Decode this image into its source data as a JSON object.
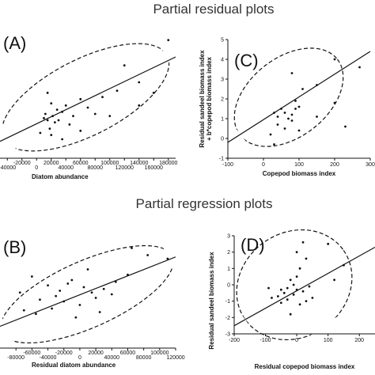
{
  "headings": {
    "top": "Partial residual plots",
    "bottom": "Partial regression plots"
  },
  "chart_data": [
    {
      "panel": "(A)",
      "type": "scatter",
      "xlabel": "Diatom abundance",
      "ylabel": "",
      "xlim": [
        -50000,
        190000
      ],
      "ylim": [
        -1.5,
        4.5
      ],
      "xticks": [
        {
          "v": -40000,
          "label": "-40000"
        },
        {
          "v": -20000,
          "label": "-20000"
        },
        {
          "v": 0,
          "label": "0"
        },
        {
          "v": 20000,
          "label": "20000"
        },
        {
          "v": 40000,
          "label": "40000"
        },
        {
          "v": 60000,
          "label": "60000"
        },
        {
          "v": 80000,
          "label": "80000"
        },
        {
          "v": 100000,
          "label": "100000"
        },
        {
          "v": 120000,
          "label": "120000"
        },
        {
          "v": 140000,
          "label": "140000"
        },
        {
          "v": 160000,
          "label": "160000"
        },
        {
          "v": 180000,
          "label": "180000"
        }
      ],
      "yticks": [],
      "points": [
        {
          "x": 180000,
          "y": 4.1
        },
        {
          "x": 120000,
          "y": 2.9
        },
        {
          "x": 140000,
          "y": 2.1
        },
        {
          "x": 160000,
          "y": 1.6
        },
        {
          "x": 140000,
          "y": 1.0
        },
        {
          "x": 110000,
          "y": 1.7
        },
        {
          "x": 100000,
          "y": 0.5
        },
        {
          "x": 90000,
          "y": 1.4
        },
        {
          "x": 80000,
          "y": 0.6
        },
        {
          "x": 70000,
          "y": 0.9
        },
        {
          "x": 60000,
          "y": 1.3
        },
        {
          "x": 50000,
          "y": 0.5
        },
        {
          "x": 45000,
          "y": 0.1
        },
        {
          "x": 40000,
          "y": 1.0
        },
        {
          "x": 35000,
          "y": 0.7
        },
        {
          "x": 30000,
          "y": 0.3
        },
        {
          "x": 28000,
          "y": 0.8
        },
        {
          "x": 25000,
          "y": 0.2
        },
        {
          "x": 22000,
          "y": 0.5
        },
        {
          "x": 20000,
          "y": 1.1
        },
        {
          "x": 18000,
          "y": -0.1
        },
        {
          "x": 15000,
          "y": 0.3
        },
        {
          "x": 12000,
          "y": 0.6
        },
        {
          "x": 10000,
          "y": 0.4
        },
        {
          "x": 5000,
          "y": -0.3
        },
        {
          "x": 20000,
          "y": -0.4
        },
        {
          "x": 35000,
          "y": -0.6
        },
        {
          "x": 60000,
          "y": -0.2
        },
        {
          "x": 15000,
          "y": 1.6
        }
      ],
      "fit_line": [
        {
          "x": -50000,
          "y": -0.7
        },
        {
          "x": 190000,
          "y": 3.3
        }
      ],
      "ellipse": {
        "cx": 70000,
        "cy": 1.3,
        "rx_deg": 1,
        "tilt": "positive"
      }
    },
    {
      "panel": "(C)",
      "type": "scatter",
      "xlabel": "Copepod biomass index",
      "ylabel": "Residual sandeel biomass index\n+ b*copepod biomass index",
      "ylabel_lines": [
        "Residual sandeel biomass index",
        "+ b*copepod biomass index"
      ],
      "xlim": [
        -100,
        300
      ],
      "ylim": [
        -1,
        5
      ],
      "xticks": [
        {
          "v": -100,
          "label": "-100"
        },
        {
          "v": 0,
          "label": "0"
        },
        {
          "v": 100,
          "label": "100"
        },
        {
          "v": 200,
          "label": "200"
        },
        {
          "v": 300,
          "label": "300"
        }
      ],
      "yticks": [
        {
          "v": -1,
          "label": "-1"
        },
        {
          "v": 0,
          "label": "0"
        },
        {
          "v": 1,
          "label": "1"
        },
        {
          "v": 2,
          "label": "2"
        },
        {
          "v": 3,
          "label": "3"
        },
        {
          "v": 4,
          "label": "4"
        },
        {
          "v": 5,
          "label": "5"
        }
      ],
      "points": [
        {
          "x": 200,
          "y": 4.0
        },
        {
          "x": 270,
          "y": 3.6
        },
        {
          "x": 80,
          "y": 3.3
        },
        {
          "x": 110,
          "y": 2.5
        },
        {
          "x": 150,
          "y": 2.7
        },
        {
          "x": 200,
          "y": 1.8
        },
        {
          "x": 90,
          "y": 1.9
        },
        {
          "x": 100,
          "y": 1.6
        },
        {
          "x": 80,
          "y": 1.2
        },
        {
          "x": 70,
          "y": 1.0
        },
        {
          "x": 60,
          "y": 1.3
        },
        {
          "x": 50,
          "y": 1.5
        },
        {
          "x": 40,
          "y": 1.1
        },
        {
          "x": 30,
          "y": 1.3
        },
        {
          "x": 40,
          "y": 0.7
        },
        {
          "x": 60,
          "y": 0.5
        },
        {
          "x": 80,
          "y": 0.9
        },
        {
          "x": 100,
          "y": 0.4
        },
        {
          "x": 150,
          "y": 1.1
        },
        {
          "x": 230,
          "y": 0.6
        },
        {
          "x": 20,
          "y": 0.2
        },
        {
          "x": 30,
          "y": -0.3
        },
        {
          "x": 90,
          "y": 1.5
        }
      ],
      "fit_line": [
        {
          "x": -100,
          "y": -0.2
        },
        {
          "x": 300,
          "y": 4.4
        }
      ],
      "ellipse": {
        "tilt": "positive"
      }
    },
    {
      "panel": "(B)",
      "type": "scatter",
      "xlabel": "Residual diatom abundance",
      "ylabel": "",
      "xlim": [
        -100000,
        120000
      ],
      "ylim": [
        -3,
        3
      ],
      "xticks": [
        {
          "v": -80000,
          "label": "-80000"
        },
        {
          "v": -60000,
          "label": "-60000"
        },
        {
          "v": -40000,
          "label": "-40000"
        },
        {
          "v": -20000,
          "label": "-20000"
        },
        {
          "v": 0,
          "label": "0"
        },
        {
          "v": 20000,
          "label": "20000"
        },
        {
          "v": 40000,
          "label": "40000"
        },
        {
          "v": 60000,
          "label": "60000"
        },
        {
          "v": 80000,
          "label": "80000"
        },
        {
          "v": 100000,
          "label": "100000"
        },
        {
          "v": 120000,
          "label": "120000"
        }
      ],
      "yticks": [],
      "points": [
        {
          "x": 65000,
          "y": 2.4
        },
        {
          "x": 85000,
          "y": 2.0
        },
        {
          "x": 110000,
          "y": 1.8
        },
        {
          "x": 10000,
          "y": 1.2
        },
        {
          "x": -10000,
          "y": 0.6
        },
        {
          "x": -60000,
          "y": 0.8
        },
        {
          "x": -40000,
          "y": 0.3
        },
        {
          "x": -25000,
          "y": 0.0
        },
        {
          "x": -30000,
          "y": -0.3
        },
        {
          "x": -20000,
          "y": -0.6
        },
        {
          "x": 0,
          "y": -0.8
        },
        {
          "x": 5000,
          "y": 0.2
        },
        {
          "x": 15000,
          "y": -0.1
        },
        {
          "x": 20000,
          "y": -0.4
        },
        {
          "x": -50000,
          "y": -0.5
        },
        {
          "x": -70000,
          "y": -1.1
        },
        {
          "x": -55000,
          "y": -1.3
        },
        {
          "x": -35000,
          "y": -1.0
        },
        {
          "x": -5000,
          "y": -1.5
        },
        {
          "x": 25000,
          "y": -1.2
        },
        {
          "x": 40000,
          "y": -0.2
        },
        {
          "x": 45000,
          "y": 0.5
        },
        {
          "x": 60000,
          "y": 0.9
        },
        {
          "x": -15000,
          "y": 0.4
        },
        {
          "x": -75000,
          "y": -0.1
        },
        {
          "x": 30000,
          "y": 0.1
        }
      ],
      "fit_line": [
        {
          "x": -100000,
          "y": -2.0
        },
        {
          "x": 120000,
          "y": 1.9
        }
      ],
      "ellipse": {
        "tilt": "positive"
      }
    },
    {
      "panel": "(D)",
      "type": "scatter",
      "xlabel": "Residual copepod biomass index",
      "ylabel": "Residual sandeel biomass index",
      "xlim": [
        -200,
        250
      ],
      "ylim": [
        -3,
        3
      ],
      "xticks": [
        {
          "v": -200,
          "label": "-200"
        },
        {
          "v": -100,
          "label": "-100"
        },
        {
          "v": 0,
          "label": "0"
        },
        {
          "v": 100,
          "label": "100"
        },
        {
          "v": 200,
          "label": "200"
        }
      ],
      "yticks": [
        {
          "v": -3,
          "label": "-3"
        },
        {
          "v": -2,
          "label": "-2"
        },
        {
          "v": -1,
          "label": "-1"
        },
        {
          "v": 0,
          "label": "0"
        },
        {
          "v": 1,
          "label": "1"
        },
        {
          "v": 2,
          "label": "2"
        },
        {
          "v": 3,
          "label": "3"
        }
      ],
      "points": [
        {
          "x": 20,
          "y": 2.6
        },
        {
          "x": 100,
          "y": 2.5
        },
        {
          "x": 0,
          "y": 2.0
        },
        {
          "x": 30,
          "y": 1.6
        },
        {
          "x": 150,
          "y": 1.2
        },
        {
          "x": 10,
          "y": 1.0
        },
        {
          "x": 0,
          "y": 0.5
        },
        {
          "x": -20,
          "y": 0.3
        },
        {
          "x": -10,
          "y": 0.0
        },
        {
          "x": -30,
          "y": -0.2
        },
        {
          "x": -50,
          "y": -0.3
        },
        {
          "x": -40,
          "y": -0.5
        },
        {
          "x": -60,
          "y": -0.7
        },
        {
          "x": -30,
          "y": -0.9
        },
        {
          "x": -10,
          "y": -0.6
        },
        {
          "x": 0,
          "y": -0.3
        },
        {
          "x": 20,
          "y": -0.4
        },
        {
          "x": 50,
          "y": -0.8
        },
        {
          "x": 30,
          "y": -1.0
        },
        {
          "x": -50,
          "y": -1.1
        },
        {
          "x": -80,
          "y": -0.8
        },
        {
          "x": -90,
          "y": -0.2
        },
        {
          "x": 10,
          "y": -1.2
        },
        {
          "x": -20,
          "y": -1.8
        },
        {
          "x": 40,
          "y": -0.1
        },
        {
          "x": 120,
          "y": 0.3
        }
      ],
      "fit_line": [
        {
          "x": -200,
          "y": -2.5
        },
        {
          "x": 250,
          "y": 2.3
        }
      ],
      "ellipse": {
        "tilt": "positive"
      }
    }
  ]
}
